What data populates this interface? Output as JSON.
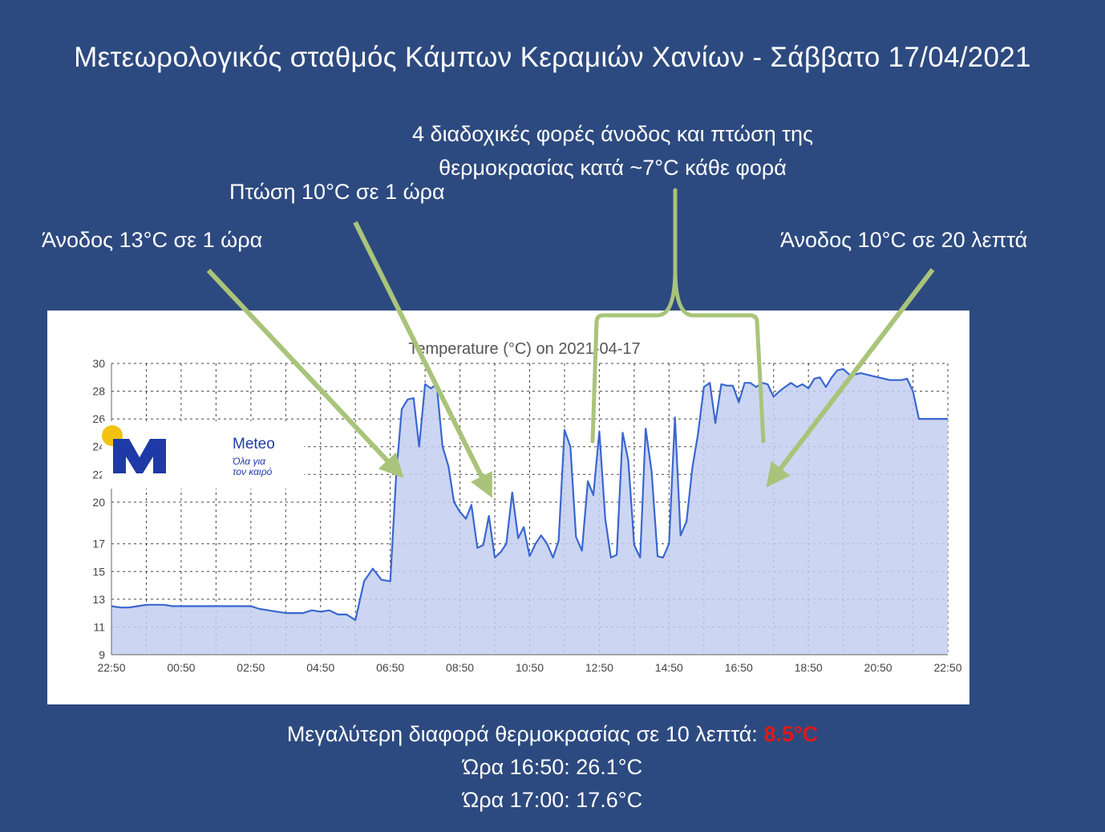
{
  "title": "Μετεωρολογικός σταθμός Κάμπων Κεραμιών Χανίων - Σάββατο 17/04/2021",
  "annotations": {
    "sequence_line1": "4 διαδοχικές φορές άνοδος και πτώση της",
    "sequence_line2": "θερμοκρασίας κατά ~7°C κάθε φορά",
    "drop": "Πτώση 10°C σε 1 ώρα",
    "rise_hour": "Άνοδος 13°C σε 1 ώρα",
    "rise_20min": "Άνοδος 10°C σε 20 λεπτά"
  },
  "logo": {
    "name": "Meteo",
    "tagline_line1": "Όλα για",
    "tagline_line2": "τον καιρό"
  },
  "footer": {
    "line1_text": "Μεγαλύτερη διαφορά θερμοκρασίας σε 10 λεπτά: ",
    "line1_value": "8.5°C",
    "line2": "Ώρα 16:50: 26.1°C",
    "line3": "Ώρα 17:00: 17.6°C"
  },
  "colors": {
    "background": "#2d4a80",
    "line": "#3a66d0",
    "fill": "#c3cff0",
    "arrow": "#a9c47a",
    "highlight": "#e01818"
  },
  "chart_data": {
    "type": "area",
    "title": "Temperature (°C) on 2021-04-17",
    "xlabel": "",
    "ylabel": "",
    "ylim": [
      9,
      30
    ],
    "y_ticks": [
      "9",
      "11",
      "13",
      "15",
      "17",
      "20",
      "22",
      "24",
      "26",
      "28",
      "30"
    ],
    "x_ticks": [
      "22:50",
      "00:50",
      "02:50",
      "04:50",
      "06:50",
      "08:50",
      "10:50",
      "12:50",
      "14:50",
      "16:50",
      "18:50",
      "20:50",
      "22:50"
    ],
    "grid": true,
    "x_unit": "hours after 22:50 (previous day)",
    "series": [
      {
        "x": [
          0,
          0.25,
          0.5,
          0.75,
          1,
          1.25,
          1.5,
          1.75,
          2,
          2.5,
          3,
          3.5,
          4,
          4.25,
          4.5,
          4.75,
          5,
          5.25,
          5.5,
          5.75,
          6,
          6.25,
          6.5,
          6.75,
          7,
          7.25,
          7.5,
          7.75,
          8,
          8.17,
          8.33,
          8.5,
          8.67,
          8.83,
          9,
          9.17,
          9.33,
          9.5,
          9.67,
          9.83,
          10,
          10.17,
          10.33,
          10.5,
          10.67,
          10.83,
          11,
          11.17,
          11.33,
          11.5,
          11.67,
          11.83,
          12,
          12.17,
          12.33,
          12.5,
          12.67,
          12.83,
          13,
          13.17,
          13.33,
          13.5,
          13.67,
          13.83,
          14,
          14.17,
          14.33,
          14.5,
          14.67,
          14.83,
          15,
          15.17,
          15.33,
          15.5,
          15.67,
          15.83,
          16,
          16.17,
          16.33,
          16.5,
          16.67,
          16.83,
          17,
          17.17,
          17.33,
          17.5,
          17.67,
          17.83,
          18,
          18.17,
          18.33,
          18.5,
          18.67,
          18.83,
          19,
          19.17,
          19.33,
          19.5,
          19.67,
          19.83,
          20,
          20.17,
          20.33,
          20.5,
          20.67,
          20.83,
          21,
          21.17,
          21.33,
          21.5,
          21.67,
          21.83,
          22,
          22.17,
          22.33,
          22.5,
          22.67,
          22.83,
          23,
          23.17,
          23.33,
          23.5,
          23.67,
          23.83,
          24
        ],
        "y": [
          12.5,
          12.4,
          12.4,
          12.5,
          12.6,
          12.6,
          12.6,
          12.5,
          12.5,
          12.5,
          12.5,
          12.5,
          12.5,
          12.3,
          12.2,
          12.1,
          12.0,
          12.0,
          12.0,
          12.2,
          12.1,
          12.2,
          11.9,
          11.9,
          11.5,
          14.3,
          15.2,
          14.4,
          14.3,
          22.0,
          26.7,
          27.4,
          27.5,
          24.0,
          28.5,
          28.2,
          28.5,
          24.0,
          22.6,
          20.0,
          19.3,
          18.8,
          19.8,
          16.7,
          16.9,
          19.0,
          16.0,
          16.4,
          17.0,
          20.7,
          17.4,
          18.2,
          16.1,
          17.0,
          17.6,
          17.0,
          16.0,
          17.2,
          25.2,
          24.0,
          17.5,
          16.5,
          21.5,
          20.5,
          25.1,
          18.8,
          16.0,
          16.2,
          25.0,
          23.0,
          16.9,
          16.0,
          25.3,
          22.2,
          16.1,
          16.0,
          17.0,
          26.1,
          17.6,
          18.6,
          22.5,
          24.9,
          28.3,
          28.6,
          25.7,
          28.5,
          28.4,
          28.4,
          27.2,
          28.6,
          28.6,
          28.3,
          28.6,
          28.5,
          27.6,
          28.0,
          28.3,
          28.6,
          28.3,
          28.5,
          28.2,
          28.9,
          29.0,
          28.3,
          29.0,
          29.5,
          29.6,
          29.2,
          29.2,
          29.3,
          29.2,
          29.1,
          29.0,
          28.9,
          28.8,
          28.8,
          28.8,
          28.9,
          28.0,
          26.0,
          26.0,
          26.0,
          26.0,
          26.0,
          26.0
        ]
      }
    ]
  }
}
